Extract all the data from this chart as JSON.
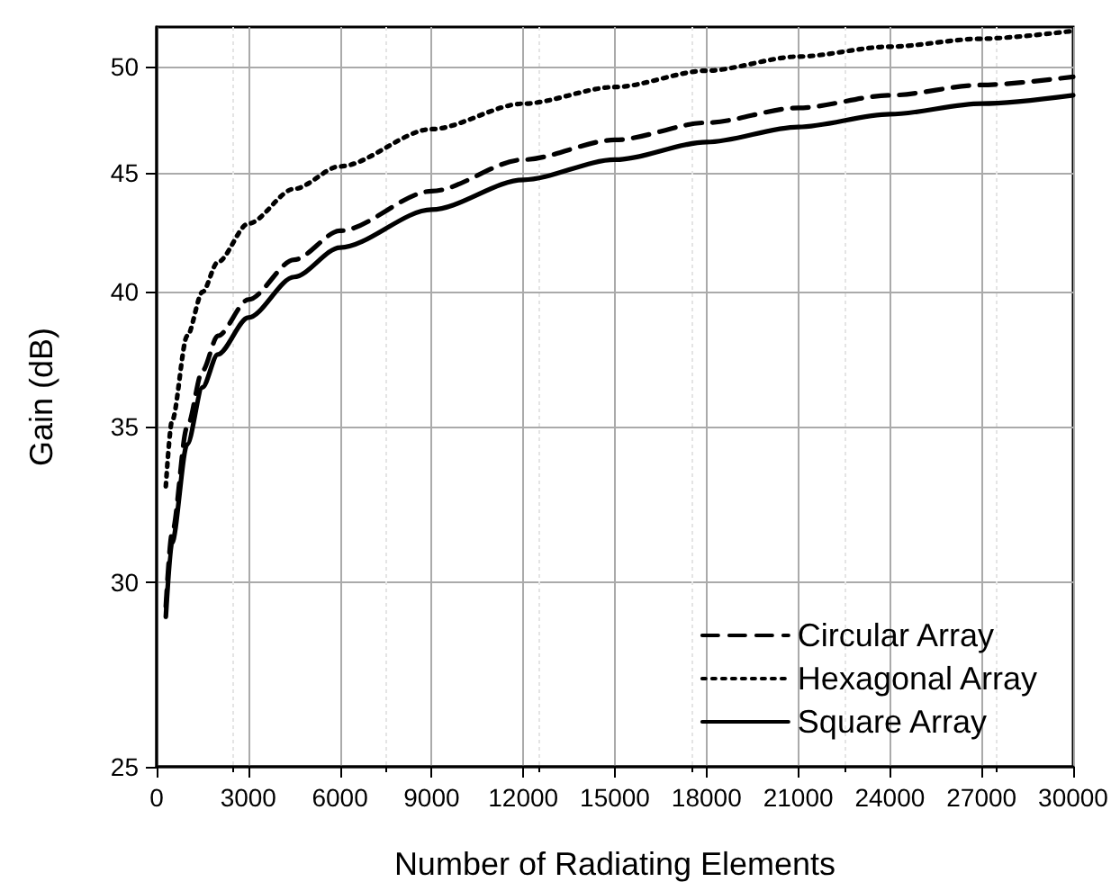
{
  "chart_data": {
    "type": "line",
    "xlabel": "Number of Radiating Elements",
    "ylabel": "Gain (dB)",
    "xlim": [
      0,
      30000
    ],
    "xticks": [
      0,
      3000,
      6000,
      9000,
      12000,
      15000,
      18000,
      21000,
      24000,
      27000,
      30000
    ],
    "ylim": [
      25,
      52
    ],
    "yticks": [
      25,
      30,
      35,
      40,
      45,
      50
    ],
    "log": "y",
    "grid": true,
    "legend": "bottom right",
    "marker": "none",
    "series": [
      {
        "name": "Circular Array",
        "color": "#000000",
        "line_style": "dashed",
        "x": [
          300,
          500,
          1000,
          1500,
          2000,
          3000,
          4500,
          6000,
          9000,
          12000,
          15000,
          18000,
          21000,
          24000,
          27000,
          30000
        ],
        "values": [
          29.3,
          31.5,
          35.0,
          37.0,
          38.3,
          39.7,
          41.3,
          42.5,
          44.2,
          45.6,
          46.5,
          47.3,
          48.0,
          48.6,
          49.1,
          49.5
        ]
      },
      {
        "name": "Hexagonal Array",
        "color": "#000000",
        "line_style": "dotted",
        "x": [
          300,
          500,
          1000,
          1500,
          2000,
          3000,
          4500,
          6000,
          9000,
          12000,
          15000,
          18000,
          21000,
          24000,
          27000,
          30000
        ],
        "values": [
          33.0,
          35.2,
          38.3,
          40.0,
          41.2,
          42.8,
          44.3,
          45.3,
          47.0,
          48.2,
          49.0,
          49.8,
          50.5,
          51.0,
          51.4,
          51.8
        ]
      },
      {
        "name": "Square Array",
        "color": "#000000",
        "line_style": "solid",
        "x": [
          300,
          500,
          1000,
          1500,
          2000,
          3000,
          4500,
          6000,
          9000,
          12000,
          15000,
          18000,
          21000,
          24000,
          27000,
          30000
        ],
        "values": [
          29.0,
          31.2,
          34.4,
          36.4,
          37.6,
          39.0,
          40.6,
          41.8,
          43.4,
          44.7,
          45.6,
          46.4,
          47.1,
          47.7,
          48.2,
          48.6
        ]
      }
    ]
  }
}
